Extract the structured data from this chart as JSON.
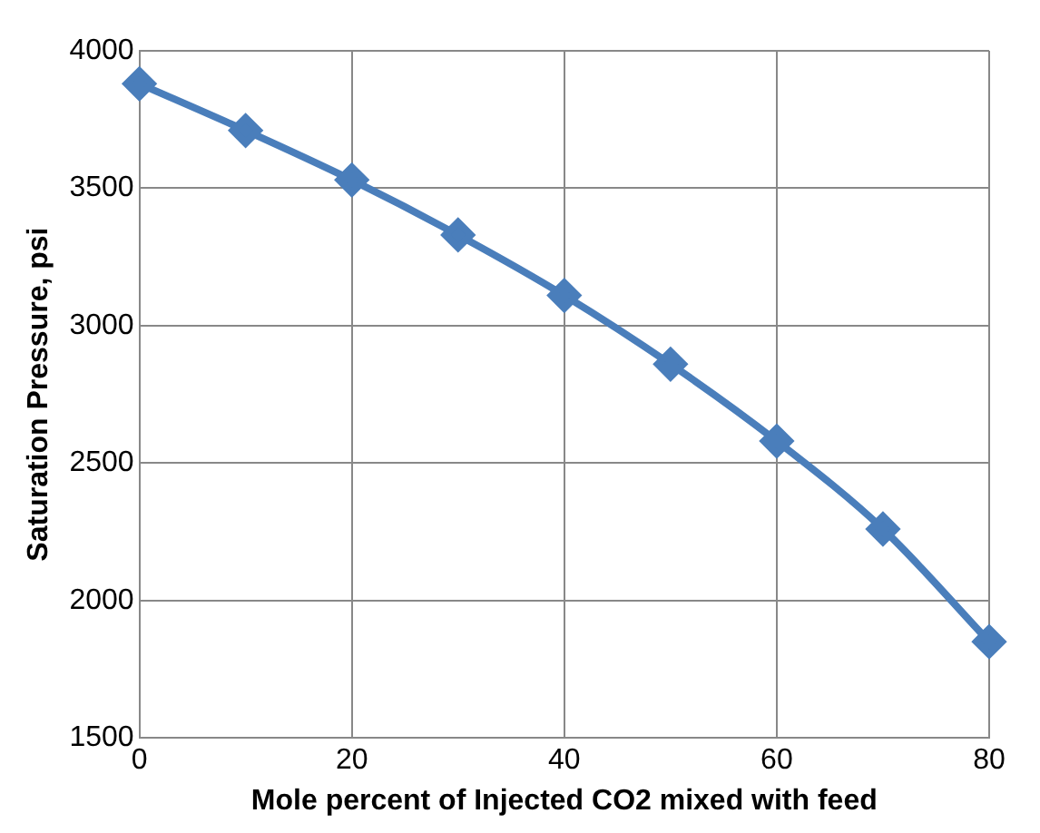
{
  "chart_data": {
    "type": "line",
    "xlabel": "Mole percent of Injected CO2 mixed with feed",
    "ylabel": "Saturation Pressure, psi",
    "x": [
      0,
      10,
      20,
      30,
      40,
      50,
      60,
      70,
      80
    ],
    "series": [
      {
        "color": "#4a7ebb",
        "values": [
          3880,
          3710,
          3530,
          3330,
          3110,
          2860,
          2580,
          2260,
          1850
        ]
      }
    ],
    "xlim": [
      0,
      80
    ],
    "xticks": [
      0,
      20,
      40,
      60,
      80
    ],
    "ylim": [
      1500,
      4000
    ],
    "yticks": [
      1500,
      2000,
      2500,
      3000,
      3500,
      4000
    ],
    "grid": true,
    "legend": false,
    "marker": "diamond",
    "line_style": "solid"
  }
}
